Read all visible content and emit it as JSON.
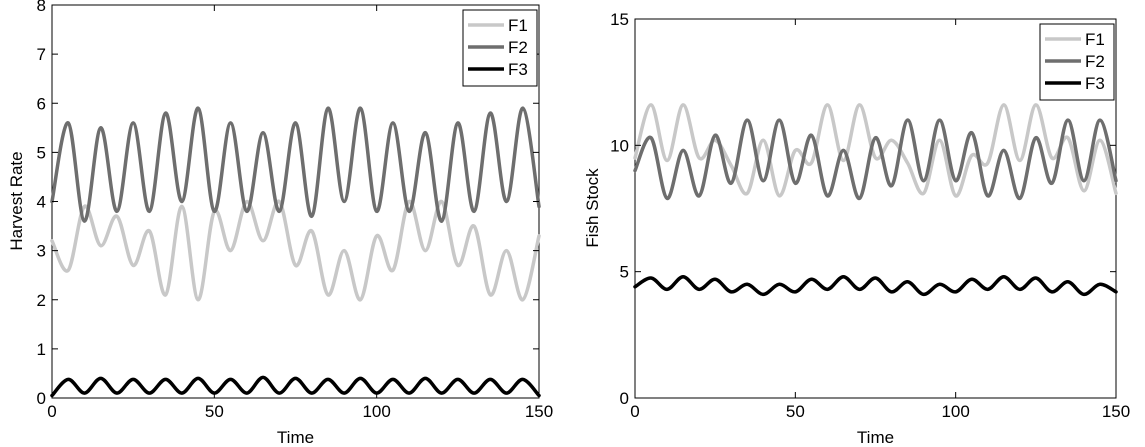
{
  "chart_data": [
    {
      "type": "line",
      "xlabel": "Time",
      "ylabel": "Harvest Rate",
      "xlim": [
        0,
        150
      ],
      "ylim": [
        0,
        8
      ],
      "xticks": [
        0,
        50,
        100,
        150
      ],
      "yticks": [
        0,
        1,
        2,
        3,
        4,
        5,
        6,
        7,
        8
      ],
      "grid": false,
      "legend_position": "top-right",
      "x": [
        0,
        5,
        10,
        15,
        20,
        25,
        30,
        35,
        40,
        45,
        50,
        55,
        60,
        65,
        70,
        75,
        80,
        85,
        90,
        95,
        100,
        105,
        110,
        115,
        120,
        125,
        130,
        135,
        140,
        145,
        150
      ],
      "series": [
        {
          "name": "F1",
          "color": "#c8c8c8",
          "values": [
            3.2,
            2.6,
            3.9,
            3.1,
            3.7,
            2.7,
            3.4,
            2.1,
            3.9,
            2.0,
            3.8,
            3.0,
            4.0,
            3.2,
            4.0,
            2.7,
            3.4,
            2.1,
            3.0,
            2.0,
            3.3,
            2.6,
            4.0,
            3.0,
            4.0,
            2.7,
            3.5,
            2.1,
            3.0,
            2.0,
            3.3
          ]
        },
        {
          "name": "F2",
          "color": "#6e6e6e",
          "values": [
            4.0,
            5.6,
            3.6,
            5.5,
            3.8,
            5.6,
            3.8,
            5.8,
            4.0,
            5.9,
            3.8,
            5.6,
            3.8,
            5.4,
            3.8,
            5.6,
            3.7,
            5.9,
            4.0,
            5.9,
            3.8,
            5.6,
            3.8,
            5.4,
            3.6,
            5.6,
            3.8,
            5.8,
            4.0,
            5.9,
            3.9
          ]
        },
        {
          "name": "F3",
          "color": "#000000",
          "values": [
            0.05,
            0.38,
            0.1,
            0.4,
            0.1,
            0.38,
            0.1,
            0.38,
            0.1,
            0.4,
            0.1,
            0.38,
            0.1,
            0.42,
            0.1,
            0.4,
            0.1,
            0.38,
            0.1,
            0.4,
            0.1,
            0.38,
            0.1,
            0.4,
            0.1,
            0.38,
            0.1,
            0.38,
            0.1,
            0.38,
            0.05
          ]
        }
      ]
    },
    {
      "type": "line",
      "xlabel": "Time",
      "ylabel": "Fish Stock",
      "xlim": [
        0,
        150
      ],
      "ylim": [
        0,
        15
      ],
      "xticks": [
        0,
        50,
        100,
        150
      ],
      "yticks": [
        0,
        5,
        10,
        15
      ],
      "grid": false,
      "legend_position": "top-right",
      "x": [
        0,
        5,
        10,
        15,
        20,
        25,
        30,
        35,
        40,
        45,
        50,
        55,
        60,
        65,
        70,
        75,
        80,
        85,
        90,
        95,
        100,
        105,
        110,
        115,
        120,
        125,
        130,
        135,
        140,
        145,
        150
      ],
      "series": [
        {
          "name": "F1",
          "color": "#c8c8c8",
          "values": [
            9.5,
            11.6,
            9.4,
            11.6,
            9.5,
            10.2,
            9.2,
            8.1,
            10.2,
            8.0,
            9.8,
            9.3,
            11.6,
            9.4,
            11.6,
            9.5,
            10.2,
            9.3,
            8.1,
            10.2,
            8.0,
            9.6,
            9.3,
            11.6,
            9.4,
            11.6,
            9.5,
            10.3,
            8.2,
            10.2,
            8.1
          ]
        },
        {
          "name": "F2",
          "color": "#6e6e6e",
          "values": [
            9.0,
            10.3,
            7.9,
            9.8,
            8.0,
            10.4,
            8.5,
            11.0,
            8.6,
            11.0,
            8.5,
            10.4,
            8.0,
            9.8,
            7.9,
            10.3,
            8.4,
            11.0,
            8.6,
            11.0,
            8.6,
            10.5,
            8.0,
            9.8,
            7.9,
            10.3,
            8.5,
            11.0,
            8.6,
            11.0,
            8.6
          ]
        },
        {
          "name": "F3",
          "color": "#000000",
          "values": [
            4.4,
            4.75,
            4.3,
            4.8,
            4.3,
            4.7,
            4.2,
            4.5,
            4.1,
            4.5,
            4.2,
            4.7,
            4.3,
            4.8,
            4.3,
            4.75,
            4.2,
            4.6,
            4.1,
            4.5,
            4.2,
            4.7,
            4.3,
            4.8,
            4.3,
            4.75,
            4.2,
            4.6,
            4.1,
            4.5,
            4.2
          ]
        }
      ]
    }
  ]
}
